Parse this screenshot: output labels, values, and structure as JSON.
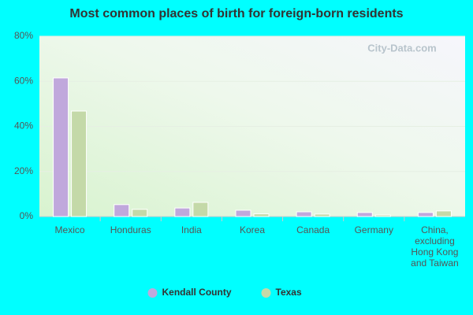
{
  "chart_data": {
    "type": "bar",
    "title": "Most common places of birth for foreign-born residents",
    "watermark": "City-Data.com",
    "categories": [
      "Mexico",
      "Honduras",
      "India",
      "Korea",
      "Canada",
      "Germany",
      "China, excluding Hong Kong and Taiwan"
    ],
    "series": [
      {
        "name": "Kendall County",
        "color": "#c0a8dc",
        "values": [
          61.5,
          5.3,
          3.8,
          2.8,
          2.1,
          1.8,
          1.8
        ]
      },
      {
        "name": "Texas",
        "color": "#c4d9a8",
        "values": [
          46.8,
          3.2,
          6.3,
          1.2,
          1.1,
          0.7,
          2.5
        ]
      }
    ],
    "ylim": [
      0,
      80
    ],
    "yticks": [
      {
        "value": 0,
        "label": "0%"
      },
      {
        "value": 20,
        "label": "20%"
      },
      {
        "value": 40,
        "label": "40%"
      },
      {
        "value": 60,
        "label": "60%"
      },
      {
        "value": 80,
        "label": "80%"
      }
    ],
    "grid": true
  }
}
